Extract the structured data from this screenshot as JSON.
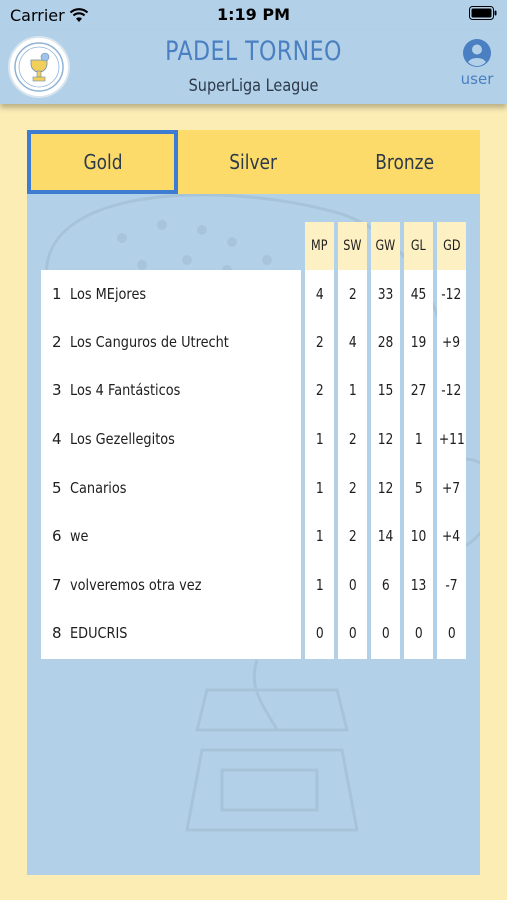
{
  "status_bar": {
    "carrier": "Carrier",
    "time": "1:19 PM"
  },
  "header": {
    "title": "PADEL TORNEO",
    "subtitle": "SuperLiga League",
    "user_label": "user"
  },
  "tabs": [
    {
      "label": "Gold",
      "selected": true
    },
    {
      "label": "Silver",
      "selected": false
    },
    {
      "label": "Bronze",
      "selected": false
    }
  ],
  "standings": {
    "columns": [
      "MP",
      "SW",
      "GW",
      "GL",
      "GD"
    ],
    "rows": [
      {
        "rank": "1",
        "team": "Los MEjores",
        "mp": "4",
        "sw": "2",
        "gw": "33",
        "gl": "45",
        "gd": "-12"
      },
      {
        "rank": "2",
        "team": "Los Canguros de Utrecht",
        "mp": "2",
        "sw": "4",
        "gw": "28",
        "gl": "19",
        "gd": "+9"
      },
      {
        "rank": "3",
        "team": "Los 4 Fantásticos",
        "mp": "2",
        "sw": "1",
        "gw": "15",
        "gl": "27",
        "gd": "-12"
      },
      {
        "rank": "4",
        "team": "Los Gezellegitos",
        "mp": "1",
        "sw": "2",
        "gw": "12",
        "gl": "1",
        "gd": "+11"
      },
      {
        "rank": "5",
        "team": "Canarios",
        "mp": "1",
        "sw": "2",
        "gw": "12",
        "gl": "5",
        "gd": "+7"
      },
      {
        "rank": "6",
        "team": "we",
        "mp": "1",
        "sw": "2",
        "gw": "14",
        "gl": "10",
        "gd": "+4"
      },
      {
        "rank": "7",
        "team": "volveremos otra vez",
        "mp": "1",
        "sw": "0",
        "gw": "6",
        "gl": "13",
        "gd": "-7"
      },
      {
        "rank": "8",
        "team": "EDUCRIS",
        "mp": "0",
        "sw": "0",
        "gw": "0",
        "gl": "0",
        "gd": "0"
      }
    ]
  },
  "colors": {
    "header_bg": "#b2d1e8",
    "accent": "#4a7fc1",
    "tab_bg": "#fcdb6a",
    "tab_selected_border": "#3d7cd0",
    "page_bg": "#fbedb4"
  },
  "icons": {
    "wifi": "wifi-icon",
    "battery": "battery-icon",
    "user": "user-icon",
    "logo": "padel-logo"
  }
}
